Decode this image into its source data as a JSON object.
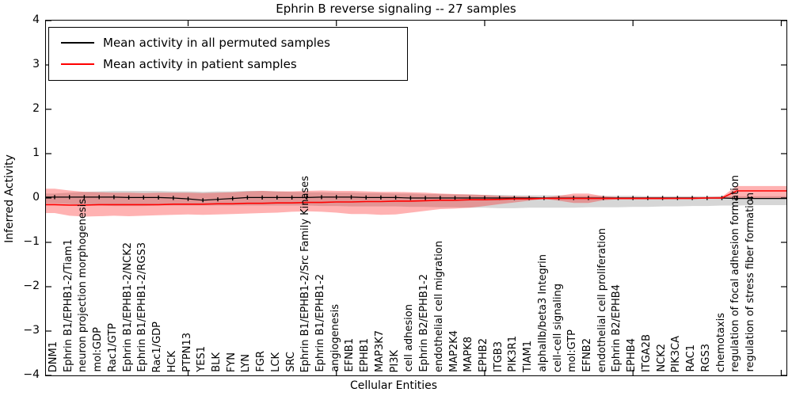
{
  "legend": {
    "items": [
      {
        "label": "Mean activity in all permuted samples",
        "color": "#000000"
      },
      {
        "label": "Mean activity in patient samples",
        "color": "#ff0000"
      }
    ]
  },
  "chart_data": {
    "type": "line",
    "title": "Ephrin B reverse signaling -- 27 samples",
    "xlabel": "Cellular Entities",
    "ylabel": "Inferred Activity",
    "ylim": [
      -4,
      4
    ],
    "grid": false,
    "legend_position": "upper left",
    "yticks": [
      {
        "label": "4",
        "value": 4
      },
      {
        "label": "3",
        "value": 3
      },
      {
        "label": "2",
        "value": 2
      },
      {
        "label": "1",
        "value": 1
      },
      {
        "label": "0",
        "value": 0
      },
      {
        "label": "−1",
        "value": -1
      },
      {
        "label": "−2",
        "value": -2
      },
      {
        "label": "−3",
        "value": -3
      },
      {
        "label": "−4",
        "value": -4
      }
    ],
    "categories": [
      "DNM1",
      "Ephrin B1/EPHB1-2/Tiam1",
      "neuron projection morphogenesis",
      "mol:GDP",
      "Rac1/GTP",
      "Ephrin B1/EPHB1-2/NCK2",
      "Ephrin B1/EPHB1-2/RGS3",
      "Rac1/GDP",
      "HCK",
      "PTPN13",
      "YES1",
      "BLK",
      "FYN",
      "LYN",
      "FGR",
      "LCK",
      "SRC",
      "Ephrin B1/EPHB1-2/Src Family Kinases",
      "Ephrin B1/EPHB1-2",
      "angiogenesis",
      "EFNB1",
      "EPHB1",
      "MAP3K7",
      "PI3K",
      "cell adhesion",
      "Ephrin B2/EPHB1-2",
      "endothelial cell migration",
      "MAP2K4",
      "MAPK8",
      "EPHB2",
      "ITGB3",
      "PIK3R1",
      "TIAM1",
      "alphaIIb/beta3 Integrin",
      "cell-cell signaling",
      "mol:GTP",
      "EFNB2",
      "endothelial cell proliferation",
      "Ephrin B2/EPHB4",
      "EPHB4",
      "ITGA2B",
      "NCK2",
      "PIK3CA",
      "RAC1",
      "RGS3",
      "chemotaxis",
      "regulation of focal adhesion formation",
      "regulation of stress fiber formation"
    ],
    "series": [
      {
        "name": "Mean activity in all permuted samples",
        "color": "#000000",
        "marker": "plus",
        "values": [
          0.02,
          0.02,
          0.02,
          0.02,
          0.02,
          0.01,
          0.01,
          0.01,
          0.0,
          -0.02,
          -0.05,
          -0.03,
          -0.01,
          0.01,
          0.01,
          0.01,
          0.01,
          0.01,
          0.02,
          0.02,
          0.02,
          0.01,
          0.01,
          0.01,
          0.0,
          0.0,
          0.0,
          0.0,
          0.0,
          0.0,
          0.0,
          0.0,
          0.0,
          0.0,
          0.0,
          0.0,
          0.0,
          0.0,
          0.0,
          0.0,
          0.0,
          0.0,
          0.0,
          0.0,
          0.0,
          0.0,
          -0.01,
          -0.01
        ]
      },
      {
        "name": "Mean activity in patient samples",
        "color": "#ff0000",
        "marker": "none",
        "values": [
          -0.15,
          -0.16,
          -0.16,
          -0.15,
          -0.15,
          -0.15,
          -0.15,
          -0.15,
          -0.14,
          -0.14,
          -0.14,
          -0.13,
          -0.13,
          -0.12,
          -0.12,
          -0.11,
          -0.11,
          -0.1,
          -0.1,
          -0.09,
          -0.09,
          -0.08,
          -0.08,
          -0.07,
          -0.07,
          -0.06,
          -0.05,
          -0.05,
          -0.04,
          -0.04,
          -0.03,
          -0.02,
          -0.02,
          -0.01,
          -0.01,
          -0.01,
          -0.01,
          -0.01,
          -0.01,
          -0.01,
          -0.01,
          -0.01,
          -0.01,
          -0.01,
          0.0,
          0.0,
          0.16,
          0.16
        ]
      }
    ],
    "bands": [
      {
        "name": "permuted std band",
        "color": "#000000",
        "opacity": 0.16,
        "upper": [
          0.1,
          0.12,
          0.14,
          0.15,
          0.16,
          0.16,
          0.16,
          0.16,
          0.15,
          0.15,
          0.14,
          0.15,
          0.15,
          0.16,
          0.16,
          0.15,
          0.14,
          0.13,
          0.13,
          0.12,
          0.12,
          0.11,
          0.11,
          0.1,
          0.1,
          0.09,
          0.09,
          0.08,
          0.08,
          0.07,
          0.07,
          0.06,
          0.06,
          0.06,
          0.06,
          0.05,
          0.05,
          0.05,
          0.05,
          0.05,
          0.04,
          0.04,
          0.04,
          0.04,
          0.04,
          0.04,
          0.04,
          0.04
        ],
        "lower": [
          -0.12,
          -0.14,
          -0.16,
          -0.17,
          -0.18,
          -0.18,
          -0.18,
          -0.17,
          -0.17,
          -0.17,
          -0.17,
          -0.17,
          -0.17,
          -0.17,
          -0.17,
          -0.17,
          -0.17,
          -0.17,
          -0.18,
          -0.18,
          -0.19,
          -0.19,
          -0.19,
          -0.19,
          -0.2,
          -0.2,
          -0.21,
          -0.21,
          -0.22,
          -0.22,
          -0.23,
          -0.23,
          -0.22,
          -0.22,
          -0.22,
          -0.22,
          -0.21,
          -0.21,
          -0.21,
          -0.2,
          -0.2,
          -0.19,
          -0.19,
          -0.18,
          -0.18,
          -0.17,
          -0.17,
          -0.16
        ]
      },
      {
        "name": "patient std band",
        "color": "#ff0000",
        "opacity": 0.3,
        "upper": [
          0.21,
          0.17,
          0.14,
          0.13,
          0.12,
          0.12,
          0.11,
          0.12,
          0.12,
          0.12,
          0.11,
          0.12,
          0.13,
          0.15,
          0.16,
          0.15,
          0.15,
          0.16,
          0.17,
          0.16,
          0.16,
          0.15,
          0.14,
          0.14,
          0.13,
          0.12,
          0.1,
          0.09,
          0.08,
          0.07,
          0.05,
          0.04,
          0.03,
          0.015,
          0.05,
          0.1,
          0.1,
          0.04,
          0.02,
          0.02,
          0.02,
          0.02,
          0.02,
          0.02,
          0.02,
          0.03,
          0.27,
          0.27
        ],
        "lower": [
          -0.34,
          -0.4,
          -0.42,
          -0.41,
          -0.4,
          -0.41,
          -0.4,
          -0.39,
          -0.38,
          -0.37,
          -0.38,
          -0.37,
          -0.36,
          -0.35,
          -0.34,
          -0.33,
          -0.31,
          -0.3,
          -0.31,
          -0.33,
          -0.36,
          -0.36,
          -0.38,
          -0.37,
          -0.33,
          -0.29,
          -0.25,
          -0.24,
          -0.22,
          -0.18,
          -0.14,
          -0.1,
          -0.06,
          -0.02,
          -0.06,
          -0.11,
          -0.11,
          -0.05,
          -0.03,
          -0.03,
          -0.03,
          -0.03,
          -0.02,
          -0.02,
          -0.02,
          -0.02,
          0.0,
          0.0
        ]
      }
    ],
    "xticks_at_category_index": [
      9,
      19,
      29,
      39
    ]
  }
}
